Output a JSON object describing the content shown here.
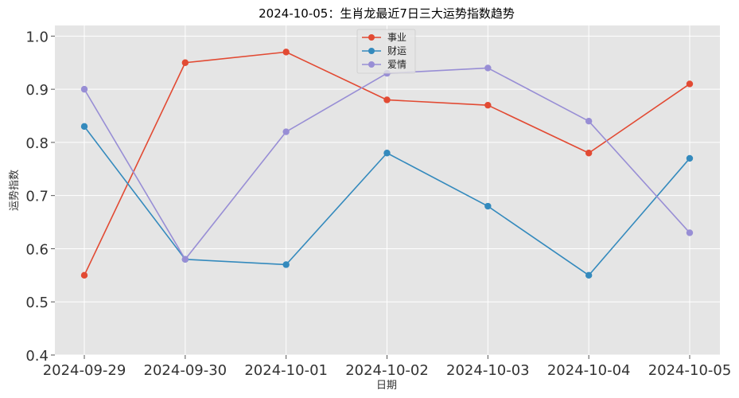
{
  "chart_data": {
    "type": "line",
    "title": "2024-10-05：生肖龙最近7日三大运势指数趋势",
    "xlabel": "日期",
    "ylabel": "运势指数",
    "categories": [
      "2024-09-29",
      "2024-09-30",
      "2024-10-01",
      "2024-10-02",
      "2024-10-03",
      "2024-10-04",
      "2024-10-05"
    ],
    "ylim": [
      0.4,
      1.02
    ],
    "yticks": [
      "0.4",
      "0.5",
      "0.6",
      "0.7",
      "0.8",
      "0.9",
      "1.0"
    ],
    "grid": true,
    "legend_position": "top-center",
    "series": [
      {
        "name": "事业",
        "color": "#E24A33",
        "values": [
          0.55,
          0.95,
          0.97,
          0.88,
          0.87,
          0.78,
          0.91
        ]
      },
      {
        "name": "财运",
        "color": "#348ABD",
        "values": [
          0.83,
          0.58,
          0.57,
          0.78,
          0.68,
          0.55,
          0.77
        ]
      },
      {
        "name": "爱情",
        "color": "#988ED5",
        "values": [
          0.9,
          0.58,
          0.82,
          0.93,
          0.94,
          0.84,
          0.63
        ]
      }
    ]
  }
}
